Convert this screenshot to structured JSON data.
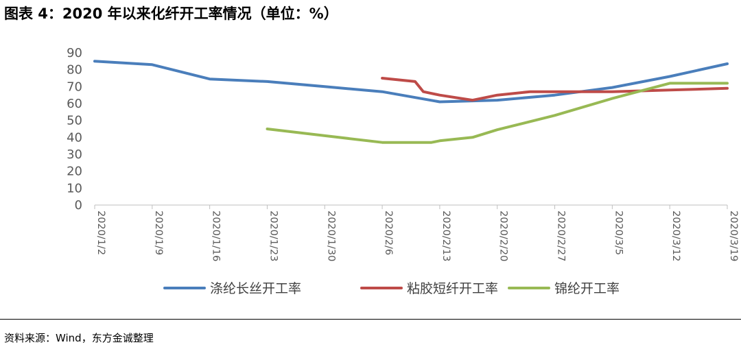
{
  "title": "图表 4：2020 年以来化纤开工率情况（单位：%）",
  "source": "资料来源：Wind，东方金诚整理",
  "chart_data": {
    "type": "line",
    "title": "图表 4：2020 年以来化纤开工率情况（单位：%）",
    "xlabel": "",
    "ylabel": "",
    "ylim": [
      0,
      90
    ],
    "yticks": [
      0,
      10,
      20,
      30,
      40,
      50,
      60,
      70,
      80,
      90
    ],
    "categories": [
      "2020/1/2",
      "2020/1/9",
      "2020/1/16",
      "2020/1/23",
      "2020/1/30",
      "2020/2/6",
      "2020/2/13",
      "2020/2/20",
      "2020/2/27",
      "2020/3/5",
      "2020/3/12",
      "2020/3/19"
    ],
    "grid": false,
    "legend": "bottom",
    "series": [
      {
        "name": "涤纶长丝开工率",
        "color": "#4a7ebb",
        "points": [
          {
            "x": "2020/1/2",
            "y": 85
          },
          {
            "x": "2020/1/9",
            "y": 83
          },
          {
            "x": "2020/1/16",
            "y": 74.5
          },
          {
            "x": "2020/1/23",
            "y": 73
          },
          {
            "x": "2020/1/30",
            "y": 70
          },
          {
            "x": "2020/2/6",
            "y": 67
          },
          {
            "x": "2020/2/13",
            "y": 61
          },
          {
            "x": "2020/2/20",
            "y": 62
          },
          {
            "x": "2020/2/27",
            "y": 65
          },
          {
            "x": "2020/3/5",
            "y": 69.5
          },
          {
            "x": "2020/3/12",
            "y": 76
          },
          {
            "x": "2020/3/19",
            "y": 83.5
          }
        ]
      },
      {
        "name": "粘胶短纤开工率",
        "color": "#be4b48",
        "points": [
          {
            "x": "2020/2/6",
            "y": 75
          },
          {
            "x": "2020/2/10",
            "y": 73
          },
          {
            "x": "2020/2/11",
            "y": 67
          },
          {
            "x": "2020/2/13",
            "y": 65
          },
          {
            "x": "2020/2/17",
            "y": 62
          },
          {
            "x": "2020/2/20",
            "y": 65
          },
          {
            "x": "2020/2/24",
            "y": 67
          },
          {
            "x": "2020/2/27",
            "y": 67
          },
          {
            "x": "2020/3/5",
            "y": 67
          },
          {
            "x": "2020/3/12",
            "y": 68
          },
          {
            "x": "2020/3/19",
            "y": 69
          }
        ]
      },
      {
        "name": "锦纶开工率",
        "color": "#98b954",
        "points": [
          {
            "x": "2020/1/23",
            "y": 45
          },
          {
            "x": "2020/1/30",
            "y": 41
          },
          {
            "x": "2020/2/6",
            "y": 37
          },
          {
            "x": "2020/2/12",
            "y": 37
          },
          {
            "x": "2020/2/13",
            "y": 38
          },
          {
            "x": "2020/2/17",
            "y": 40
          },
          {
            "x": "2020/2/20",
            "y": 44.5
          },
          {
            "x": "2020/2/27",
            "y": 53
          },
          {
            "x": "2020/3/5",
            "y": 63
          },
          {
            "x": "2020/3/12",
            "y": 72
          },
          {
            "x": "2020/3/19",
            "y": 72
          }
        ]
      }
    ]
  }
}
